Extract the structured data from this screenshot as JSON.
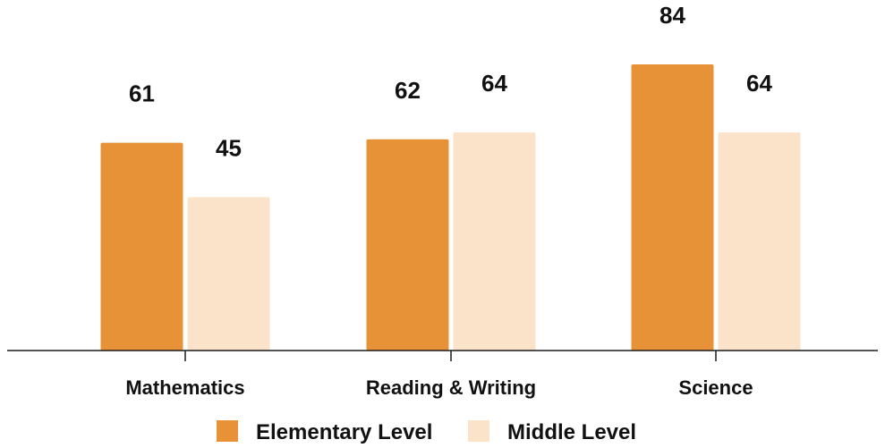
{
  "chart_data": {
    "type": "bar",
    "categories": [
      "Mathematics",
      "Reading & Writing",
      "Science"
    ],
    "series": [
      {
        "name": "Elementary Level",
        "values": [
          61,
          62,
          84
        ],
        "color": "#E89237"
      },
      {
        "name": "Middle Level",
        "values": [
          45,
          64,
          64
        ],
        "color": "#FBE3CA"
      }
    ],
    "title": "",
    "xlabel": "",
    "ylabel": "",
    "ylim": [
      0,
      100
    ],
    "grid": false,
    "legend_position": "bottom",
    "data_labels": true
  }
}
